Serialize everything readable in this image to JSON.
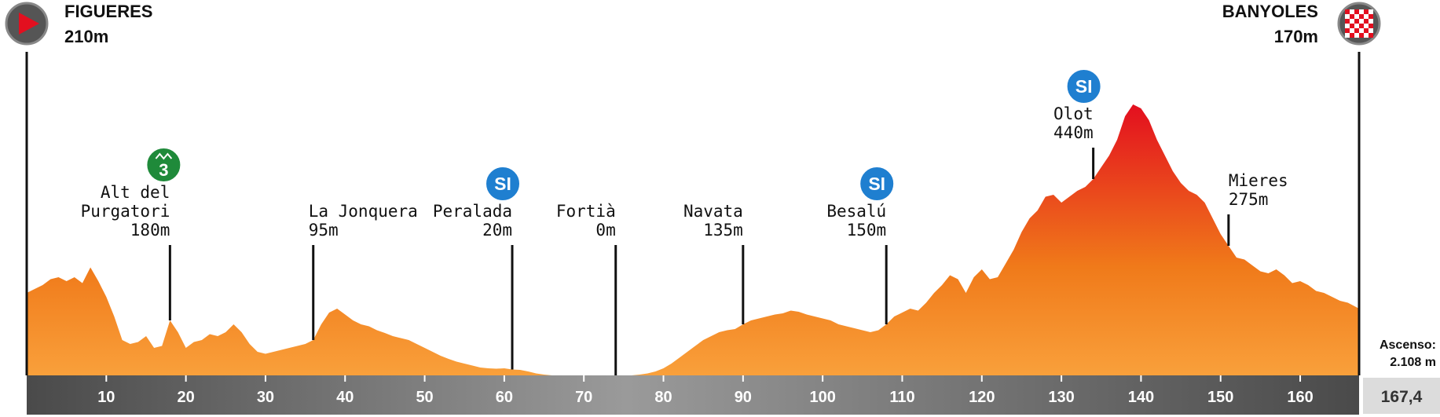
{
  "start": {
    "name": "FIGUERES",
    "alt": "210m",
    "icon": "play-arrow-icon"
  },
  "finish": {
    "name": "BANYOLES",
    "alt": "170m",
    "icon": "checkered-flag-icon"
  },
  "summary": {
    "ascent_label": "Ascenso:",
    "ascent_value": "2.108 m",
    "distance": "167,4"
  },
  "colors": {
    "low": "#f9a03b",
    "mid": "#f07a1a",
    "high": "#e30f1f",
    "axis": "#5b5b5b",
    "sprint": "#1f7fd0",
    "kom": "#1f8a3a"
  },
  "chart_data": {
    "type": "area",
    "title": "",
    "xlabel": "",
    "ylabel": "",
    "xlim": [
      0,
      167.4
    ],
    "ylim": [
      0,
      700
    ],
    "x_ticks": [
      10,
      20,
      30,
      40,
      50,
      60,
      70,
      80,
      90,
      100,
      110,
      120,
      130,
      140,
      150,
      160
    ],
    "tick_labels": [
      "10",
      "20",
      "30",
      "40",
      "50",
      "60",
      "70",
      "80",
      "90",
      "100",
      "110",
      "120",
      "130",
      "140",
      "150",
      "160"
    ],
    "x": [
      0,
      1,
      2,
      3,
      4,
      5,
      6,
      7,
      8,
      9,
      10,
      11,
      12,
      13,
      14,
      15,
      16,
      17,
      18,
      19,
      20,
      21,
      22,
      23,
      24,
      25,
      26,
      27,
      28,
      29,
      30,
      31,
      32,
      33,
      34,
      35,
      36,
      37,
      38,
      39,
      40,
      41,
      42,
      43,
      44,
      45,
      46,
      47,
      48,
      49,
      50,
      51,
      52,
      53,
      54,
      55,
      56,
      57,
      58,
      59,
      60,
      61,
      62,
      63,
      64,
      65,
      66,
      67,
      68,
      69,
      70,
      71,
      72,
      73,
      74,
      75,
      76,
      77,
      78,
      79,
      80,
      81,
      82,
      83,
      84,
      85,
      86,
      87,
      88,
      89,
      90,
      91,
      92,
      93,
      94,
      95,
      96,
      97,
      98,
      99,
      100,
      101,
      102,
      103,
      104,
      105,
      106,
      107,
      108,
      109,
      110,
      111,
      112,
      113,
      114,
      115,
      116,
      117,
      118,
      119,
      120,
      121,
      122,
      123,
      124,
      125,
      126,
      127,
      128,
      129,
      130,
      131,
      132,
      133,
      134,
      135,
      136,
      137,
      138,
      139,
      140,
      141,
      142,
      143,
      144,
      145,
      146,
      147,
      148,
      149,
      150,
      151,
      152,
      153,
      154,
      155,
      156,
      157,
      158,
      159,
      160,
      161,
      162,
      163,
      164,
      165,
      166,
      167.4
    ],
    "elevation": [
      210,
      220,
      230,
      245,
      250,
      240,
      250,
      235,
      275,
      240,
      200,
      150,
      90,
      80,
      85,
      100,
      70,
      75,
      140,
      110,
      70,
      85,
      90,
      105,
      100,
      110,
      130,
      110,
      80,
      60,
      55,
      60,
      65,
      70,
      75,
      80,
      90,
      130,
      160,
      170,
      155,
      140,
      130,
      125,
      115,
      108,
      100,
      95,
      90,
      80,
      70,
      60,
      50,
      42,
      35,
      30,
      25,
      20,
      18,
      17,
      18,
      15,
      14,
      10,
      5,
      2,
      0,
      0,
      0,
      0,
      0,
      0,
      0,
      0,
      0,
      0,
      0,
      2,
      5,
      10,
      18,
      30,
      45,
      60,
      75,
      90,
      100,
      110,
      115,
      118,
      130,
      140,
      145,
      150,
      155,
      158,
      165,
      162,
      155,
      150,
      145,
      140,
      130,
      125,
      120,
      115,
      110,
      115,
      130,
      150,
      160,
      170,
      165,
      185,
      210,
      230,
      255,
      245,
      210,
      250,
      270,
      245,
      250,
      285,
      320,
      365,
      400,
      420,
      455,
      460,
      440,
      455,
      470,
      480,
      500,
      530,
      560,
      600,
      660,
      690,
      680,
      650,
      600,
      560,
      520,
      490,
      470,
      460,
      440,
      400,
      360,
      330,
      300,
      295,
      280,
      265,
      260,
      270,
      255,
      235,
      240,
      230,
      215,
      210,
      200,
      190,
      185,
      170
    ],
    "series": [
      {
        "values_ref": "elevation"
      }
    ]
  },
  "towns": [
    {
      "label_lines": [
        "Alt del",
        "Purgatori",
        "180m"
      ],
      "km": 18,
      "badge": {
        "type": "kom",
        "text": "3"
      }
    },
    {
      "label_lines": [
        "La Jonquera",
        "95m"
      ],
      "km": 36,
      "badge": null
    },
    {
      "label_lines": [
        "Peralada",
        "20m"
      ],
      "km": 61,
      "badge": {
        "type": "sprint",
        "text": "SI"
      }
    },
    {
      "label_lines": [
        "Fortià",
        "0m"
      ],
      "km": 74,
      "badge": null
    },
    {
      "label_lines": [
        "Navata",
        "135m"
      ],
      "km": 90,
      "badge": null
    },
    {
      "label_lines": [
        "Besalú",
        "150m"
      ],
      "km": 108,
      "badge": {
        "type": "sprint",
        "text": "SI"
      }
    },
    {
      "label_lines": [
        "Olot",
        "440m"
      ],
      "km": 134,
      "badge": {
        "type": "sprint",
        "text": "SI"
      }
    },
    {
      "label_lines": [
        "Mieres",
        "275m"
      ],
      "km": 151,
      "badge": null
    }
  ]
}
